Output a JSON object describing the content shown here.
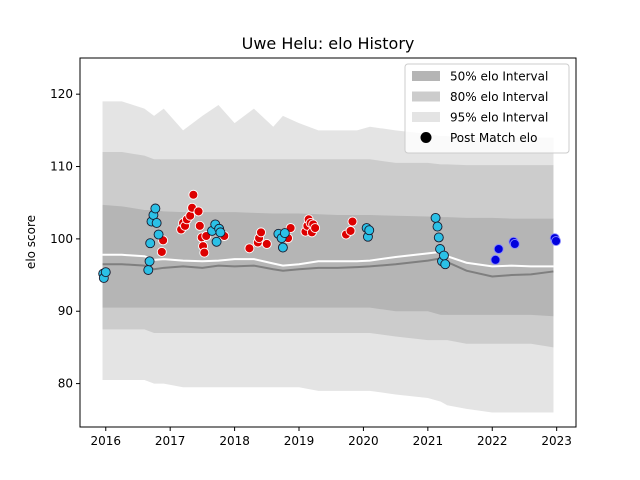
{
  "chart_data": {
    "type": "scatter",
    "title": "Uwe Helu: elo History",
    "xlabel": "",
    "ylabel": "elo score",
    "xlim": [
      2015.6,
      2023.3
    ],
    "ylim": [
      74,
      125
    ],
    "x_ticks": [
      2016,
      2017,
      2018,
      2019,
      2020,
      2021,
      2022,
      2023
    ],
    "x_tick_labels": [
      "2016",
      "2017",
      "2018",
      "2019",
      "2020",
      "2021",
      "2022",
      "2023"
    ],
    "y_ticks": [
      80,
      90,
      100,
      110,
      120
    ],
    "y_tick_labels": [
      "80",
      "90",
      "100",
      "110",
      "120"
    ],
    "grid": false,
    "legend_position": "top-right",
    "colors": {
      "interval_50": "#b5b5b5",
      "interval_80": "#cccccc",
      "interval_95": "#e4e4e4",
      "median_line": "#7f7f7f",
      "mean_line": "#ffffff",
      "marker_light": "#2bc0e6",
      "marker_red": "#dd0000",
      "marker_blue": "#0000dd"
    },
    "legend": [
      {
        "label": "50% elo Interval",
        "kind": "patch",
        "color_key": "interval_50"
      },
      {
        "label": "80% elo Interval",
        "kind": "patch",
        "color_key": "interval_80"
      },
      {
        "label": "95% elo Interval",
        "kind": "patch",
        "color_key": "interval_95"
      },
      {
        "label": "Post Match elo",
        "kind": "marker"
      }
    ],
    "bands": {
      "x": [
        2015.95,
        2016.25,
        2016.6,
        2016.75,
        2016.9,
        2017.2,
        2017.5,
        2017.75,
        2018.0,
        2018.3,
        2018.6,
        2018.75,
        2019.0,
        2019.3,
        2019.6,
        2019.9,
        2020.1,
        2020.5,
        2021.0,
        2021.2,
        2021.3,
        2021.6,
        2022.0,
        2022.3,
        2022.6,
        2022.95
      ],
      "lo95": [
        80.5,
        80.5,
        80.5,
        80.0,
        80.0,
        79.5,
        79.5,
        79.5,
        79.5,
        79.5,
        79.5,
        79.5,
        79.5,
        79.0,
        79.0,
        79.0,
        79.0,
        78.5,
        78.0,
        77.5,
        77.0,
        76.5,
        76.0,
        76.0,
        76.0,
        76.0
      ],
      "lo80": [
        87.5,
        87.5,
        87.5,
        87.0,
        87.0,
        87.0,
        87.0,
        87.0,
        87.0,
        87.0,
        87.0,
        87.0,
        87.0,
        87.0,
        87.0,
        87.0,
        87.0,
        86.5,
        86.0,
        86.0,
        86.0,
        85.5,
        85.5,
        85.5,
        85.5,
        85.0
      ],
      "lo50": [
        90.5,
        90.5,
        90.5,
        90.5,
        90.5,
        90.5,
        90.5,
        90.5,
        90.5,
        90.5,
        90.5,
        90.5,
        90.5,
        90.5,
        90.5,
        90.5,
        90.5,
        90.0,
        90.0,
        89.5,
        89.5,
        89.5,
        89.5,
        89.5,
        89.5,
        89.3
      ],
      "hi50": [
        104.7,
        104.5,
        104.0,
        104.0,
        103.8,
        103.7,
        103.7,
        103.7,
        103.7,
        103.6,
        103.5,
        103.5,
        103.5,
        103.4,
        103.3,
        103.3,
        103.3,
        103.2,
        103.1,
        103.0,
        103.0,
        102.9,
        102.9,
        102.8,
        102.8,
        102.8
      ],
      "hi80": [
        112.0,
        112.0,
        111.5,
        111.0,
        111.0,
        111.0,
        111.0,
        111.0,
        111.0,
        111.0,
        111.0,
        111.0,
        111.0,
        111.0,
        111.0,
        111.0,
        111.0,
        110.5,
        110.5,
        110.3,
        110.3,
        110.2,
        110.2,
        110.2,
        110.2,
        110.2
      ],
      "hi95": [
        119.0,
        119.0,
        118.0,
        117.0,
        118.0,
        115.0,
        117.0,
        118.5,
        116.0,
        118.0,
        115.5,
        117.0,
        116.0,
        115.0,
        115.0,
        115.0,
        115.5,
        115.0,
        114.5,
        114.2,
        114.2,
        114.0,
        114.0,
        114.0,
        114.0,
        114.0
      ],
      "median": [
        96.5,
        96.5,
        96.3,
        95.8,
        96.0,
        96.2,
        96.0,
        96.3,
        96.2,
        96.3,
        95.8,
        95.6,
        95.8,
        96.0,
        96.0,
        96.1,
        96.2,
        96.5,
        97.0,
        97.3,
        96.8,
        95.6,
        94.8,
        95.0,
        95.1,
        95.5
      ],
      "mean": [
        97.8,
        97.8,
        97.6,
        97.1,
        97.2,
        97.0,
        96.9,
        97.0,
        97.2,
        97.2,
        96.6,
        96.3,
        96.5,
        96.9,
        96.9,
        96.9,
        97.0,
        97.5,
        98.0,
        98.2,
        97.6,
        96.7,
        96.2,
        96.3,
        96.2,
        96.2
      ]
    },
    "points_light": [
      {
        "x": 2015.96,
        "y": 95.2
      },
      {
        "x": 2015.97,
        "y": 94.6
      },
      {
        "x": 2016.0,
        "y": 95.4
      },
      {
        "x": 2016.66,
        "y": 95.7
      },
      {
        "x": 2016.68,
        "y": 96.9
      },
      {
        "x": 2016.69,
        "y": 99.4
      },
      {
        "x": 2016.71,
        "y": 102.4
      },
      {
        "x": 2016.74,
        "y": 103.3
      },
      {
        "x": 2016.77,
        "y": 104.2
      },
      {
        "x": 2016.79,
        "y": 102.2
      },
      {
        "x": 2016.82,
        "y": 100.6
      },
      {
        "x": 2017.65,
        "y": 101.1
      },
      {
        "x": 2017.7,
        "y": 102.0
      },
      {
        "x": 2017.72,
        "y": 99.6
      },
      {
        "x": 2017.76,
        "y": 101.4
      },
      {
        "x": 2017.78,
        "y": 100.9
      },
      {
        "x": 2018.68,
        "y": 100.7
      },
      {
        "x": 2018.73,
        "y": 100.1
      },
      {
        "x": 2018.75,
        "y": 98.8
      },
      {
        "x": 2018.78,
        "y": 100.8
      },
      {
        "x": 2020.05,
        "y": 101.5
      },
      {
        "x": 2020.07,
        "y": 100.3
      },
      {
        "x": 2020.09,
        "y": 101.2
      },
      {
        "x": 2021.12,
        "y": 102.9
      },
      {
        "x": 2021.15,
        "y": 101.7
      },
      {
        "x": 2021.17,
        "y": 100.2
      },
      {
        "x": 2021.19,
        "y": 98.6
      },
      {
        "x": 2021.22,
        "y": 96.9
      },
      {
        "x": 2021.25,
        "y": 97.7
      },
      {
        "x": 2021.27,
        "y": 96.5
      }
    ],
    "points_red": [
      {
        "x": 2016.87,
        "y": 98.2
      },
      {
        "x": 2016.89,
        "y": 99.8
      },
      {
        "x": 2017.17,
        "y": 101.3
      },
      {
        "x": 2017.2,
        "y": 102.2
      },
      {
        "x": 2017.23,
        "y": 101.8
      },
      {
        "x": 2017.26,
        "y": 102.7
      },
      {
        "x": 2017.31,
        "y": 103.2
      },
      {
        "x": 2017.34,
        "y": 104.3
      },
      {
        "x": 2017.36,
        "y": 106.1
      },
      {
        "x": 2017.44,
        "y": 103.8
      },
      {
        "x": 2017.46,
        "y": 101.8
      },
      {
        "x": 2017.49,
        "y": 100.2
      },
      {
        "x": 2017.51,
        "y": 99.0
      },
      {
        "x": 2017.53,
        "y": 98.1
      },
      {
        "x": 2017.56,
        "y": 100.4
      },
      {
        "x": 2017.84,
        "y": 100.4
      },
      {
        "x": 2018.23,
        "y": 98.7
      },
      {
        "x": 2018.36,
        "y": 99.5
      },
      {
        "x": 2018.38,
        "y": 100.1
      },
      {
        "x": 2018.41,
        "y": 100.9
      },
      {
        "x": 2018.5,
        "y": 99.3
      },
      {
        "x": 2018.83,
        "y": 100.1
      },
      {
        "x": 2018.87,
        "y": 101.5
      },
      {
        "x": 2019.1,
        "y": 101.0
      },
      {
        "x": 2019.13,
        "y": 101.8
      },
      {
        "x": 2019.15,
        "y": 102.7
      },
      {
        "x": 2019.18,
        "y": 102.2
      },
      {
        "x": 2019.2,
        "y": 100.9
      },
      {
        "x": 2019.22,
        "y": 102.0
      },
      {
        "x": 2019.25,
        "y": 101.5
      },
      {
        "x": 2019.73,
        "y": 100.6
      },
      {
        "x": 2019.8,
        "y": 101.1
      },
      {
        "x": 2019.83,
        "y": 102.4
      }
    ],
    "points_blue": [
      {
        "x": 2022.05,
        "y": 97.1
      },
      {
        "x": 2022.1,
        "y": 98.6
      },
      {
        "x": 2022.33,
        "y": 99.6
      },
      {
        "x": 2022.35,
        "y": 99.3
      },
      {
        "x": 2022.97,
        "y": 100.1
      },
      {
        "x": 2022.99,
        "y": 99.7
      }
    ]
  }
}
